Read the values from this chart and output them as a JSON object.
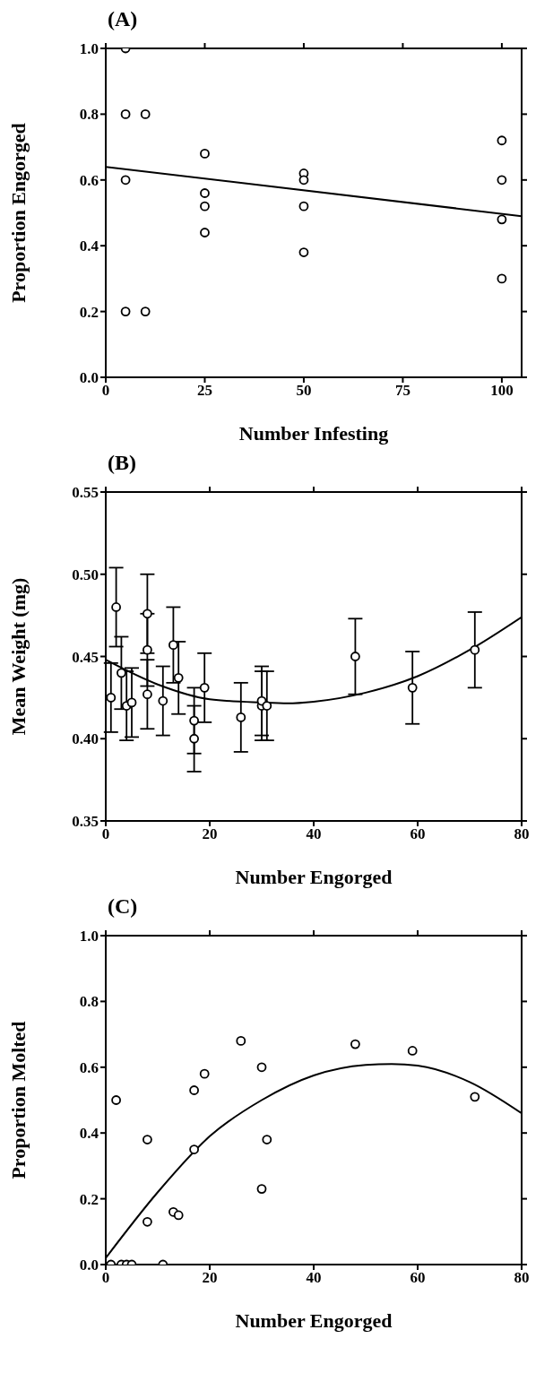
{
  "chart_data": [
    {
      "type": "scatter",
      "title": "(A)",
      "xlabel": "Number  Infesting",
      "ylabel": "Proportion  Engorged",
      "xlim": [
        0,
        105
      ],
      "ylim": [
        0,
        1
      ],
      "xticks": [
        0,
        25,
        50,
        75,
        100
      ],
      "yticks": [
        {
          "value": 0,
          "label": "0.0"
        },
        {
          "value": 0.2,
          "label": "0.2"
        },
        {
          "value": 0.4,
          "label": "0.4"
        },
        {
          "value": 0.6,
          "label": "0.6"
        },
        {
          "value": 0.8,
          "label": "0.8"
        },
        {
          "value": 1,
          "label": "1.0"
        }
      ],
      "marker": "circle",
      "series": [
        {
          "color": "#000000",
          "x": [
            5,
            5,
            5,
            5,
            10,
            10,
            25,
            25,
            25,
            25,
            50,
            50,
            50,
            50,
            100,
            100,
            100,
            100
          ],
          "values": [
            1.0,
            0.8,
            0.6,
            0.2,
            0.8,
            0.2,
            0.68,
            0.56,
            0.52,
            0.44,
            0.62,
            0.6,
            0.52,
            0.38,
            0.72,
            0.6,
            0.48,
            0.3
          ]
        },
        {
          "type": "line",
          "color": "#000000",
          "marker": "none",
          "x": [
            0,
            105
          ],
          "values": [
            0.64,
            0.49
          ]
        }
      ]
    },
    {
      "type": "scatter",
      "title": "(B)",
      "xlabel": "Number  Engorged",
      "ylabel": "Mean  Weight  (mg)",
      "xlim": [
        0,
        80
      ],
      "ylim": [
        0.35,
        0.55
      ],
      "xticks": [
        0,
        20,
        40,
        60,
        80
      ],
      "yticks": [
        {
          "value": 0.35,
          "label": "0.35"
        },
        {
          "value": 0.4,
          "label": "0.40"
        },
        {
          "value": 0.45,
          "label": "0.45"
        },
        {
          "value": 0.5,
          "label": "0.50"
        },
        {
          "value": 0.55,
          "label": "0.55"
        }
      ],
      "marker": "circle",
      "series": [
        {
          "color": "#000000",
          "x": [
            1,
            2,
            3,
            4,
            5,
            8,
            8,
            8,
            11,
            13,
            14,
            17,
            17,
            19,
            26,
            30,
            30,
            31,
            48,
            59,
            71
          ],
          "values": [
            0.425,
            0.48,
            0.44,
            0.42,
            0.422,
            0.427,
            0.454,
            0.476,
            0.423,
            0.457,
            0.437,
            0.411,
            0.4,
            0.431,
            0.413,
            0.42,
            0.423,
            0.42,
            0.45,
            0.431,
            0.454
          ],
          "errors": [
            0.021,
            0.024,
            0.022,
            0.021,
            0.021,
            0.021,
            0.022,
            0.024,
            0.021,
            0.023,
            0.022,
            0.02,
            0.02,
            0.021,
            0.021,
            0.021,
            0.021,
            0.021,
            0.023,
            0.022,
            0.023
          ]
        },
        {
          "type": "line",
          "color": "#000000",
          "marker": "none",
          "x": [
            0,
            10,
            20,
            30,
            35,
            40,
            50,
            60,
            70,
            80
          ],
          "values": [
            0.448,
            0.433,
            0.424,
            0.422,
            0.4215,
            0.4225,
            0.428,
            0.438,
            0.454,
            0.474
          ]
        }
      ]
    },
    {
      "type": "scatter",
      "title": "(C)",
      "xlabel": "Number  Engorged",
      "ylabel": "Proportion  Molted",
      "xlim": [
        0,
        80
      ],
      "ylim": [
        0,
        1
      ],
      "xticks": [
        0,
        20,
        40,
        60,
        80
      ],
      "yticks": [
        {
          "value": 0,
          "label": "0.0"
        },
        {
          "value": 0.2,
          "label": "0.2"
        },
        {
          "value": 0.4,
          "label": "0.4"
        },
        {
          "value": 0.6,
          "label": "0.6"
        },
        {
          "value": 0.8,
          "label": "0.8"
        },
        {
          "value": 1,
          "label": "1.0"
        }
      ],
      "marker": "circle",
      "series": [
        {
          "color": "#000000",
          "x": [
            1,
            2,
            3,
            4,
            5,
            8,
            8,
            11,
            13,
            14,
            17,
            17,
            19,
            26,
            30,
            30,
            31,
            48,
            59,
            71
          ],
          "values": [
            0,
            0.5,
            0,
            0,
            0,
            0.38,
            0.13,
            0,
            0.16,
            0.15,
            0.53,
            0.35,
            0.58,
            0.68,
            0.6,
            0.23,
            0.38,
            0.67,
            0.65,
            0.51
          ]
        },
        {
          "type": "line",
          "color": "#000000",
          "marker": "none",
          "x": [
            0,
            10,
            20,
            30,
            40,
            50,
            55,
            60,
            70,
            80
          ],
          "values": [
            0.02,
            0.22,
            0.39,
            0.5,
            0.575,
            0.607,
            0.61,
            0.605,
            0.555,
            0.46
          ]
        }
      ]
    }
  ]
}
